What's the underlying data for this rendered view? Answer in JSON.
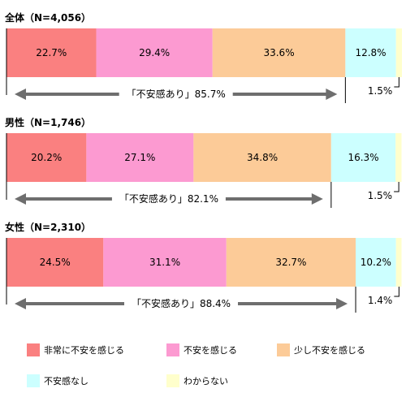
{
  "chart_data": {
    "type": "bar",
    "stacked": true,
    "orientation": "horizontal",
    "categories": [
      {
        "label": "全体（N=4,056）",
        "unease_label": "「不安感あり」85.7%"
      },
      {
        "label": "男性（N=1,746）",
        "unease_label": "「不安感あり」82.1%"
      },
      {
        "label": "女性（N=2,310）",
        "unease_label": "「不安感あり」88.4%"
      }
    ],
    "series": [
      {
        "name": "非常に不安を感じる",
        "color": "#fa8080",
        "values": [
          22.7,
          20.2,
          24.5
        ],
        "labels": [
          "22.7%",
          "20.2%",
          "24.5%"
        ]
      },
      {
        "name": "不安を感じる",
        "color": "#fc9ad1",
        "values": [
          29.4,
          27.1,
          31.1
        ],
        "labels": [
          "29.4%",
          "27.1%",
          "31.1%"
        ]
      },
      {
        "name": "少し不安を感じる",
        "color": "#fccb98",
        "values": [
          33.6,
          34.8,
          32.7
        ],
        "labels": [
          "33.6%",
          "34.8%",
          "32.7%"
        ]
      },
      {
        "name": "不安感なし",
        "color": "#ccffff",
        "values": [
          12.8,
          16.3,
          10.2
        ],
        "labels": [
          "12.8%",
          "16.3%",
          "10.2%"
        ]
      },
      {
        "name": "わからない",
        "color": "#ffffcc",
        "values": [
          1.5,
          1.5,
          1.4
        ],
        "labels": [
          "1.5%",
          "1.5%",
          "1.4%"
        ]
      }
    ],
    "xlim": [
      0,
      100
    ],
    "legend_position": "bottom",
    "arrow_color": "#6e6e6e"
  }
}
